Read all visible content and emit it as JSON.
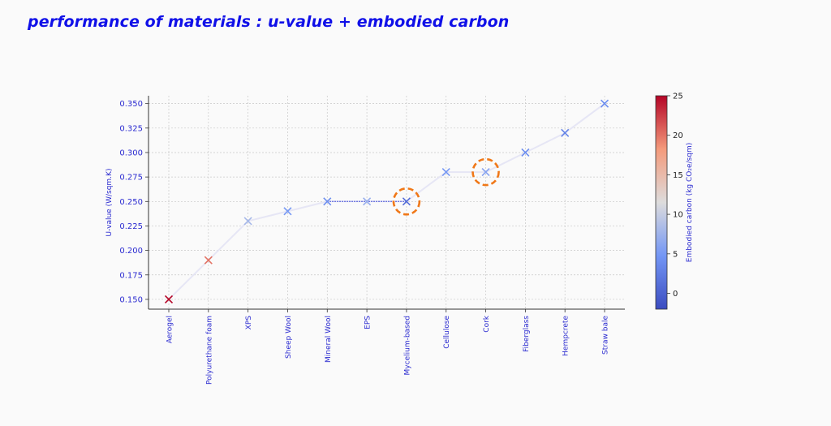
{
  "title": "performance of materials : u-value + embodied carbon",
  "chart_data": {
    "type": "scatter",
    "categories": [
      "Aerogel",
      "Polyurethane foam",
      "XPS",
      "Sheep Wool",
      "Mineral Wool",
      "EPS",
      "Mycelium-based",
      "Cellulose",
      "Cork",
      "Fiberglass",
      "Hempcrete",
      "Straw bale"
    ],
    "u_values": [
      0.15,
      0.19,
      0.23,
      0.24,
      0.25,
      0.25,
      0.25,
      0.28,
      0.28,
      0.3,
      0.32,
      0.35
    ],
    "embodied_carbon": [
      25,
      20,
      8,
      5,
      4,
      7,
      1,
      5,
      6,
      4,
      3,
      4
    ],
    "ylabel": "U-value (W/sqm.K)",
    "ylim": [
      0.14,
      0.358
    ],
    "yticks": [
      "0.150",
      "0.175",
      "0.200",
      "0.225",
      "0.250",
      "0.275",
      "0.300",
      "0.325",
      "0.350"
    ],
    "colorbar": {
      "label": "Embodied carbon (kg CO₂e/sqm)",
      "range": [
        -2,
        25
      ],
      "ticks": [
        "0",
        "5",
        "10",
        "15",
        "20",
        "25"
      ],
      "colormap": "coolwarm"
    },
    "highlighted": [
      "Mycelium-based",
      "Cork"
    ],
    "highlight_color": "#f07818",
    "line_color": "#e6e6f5",
    "dotted_segment": [
      "Mineral Wool",
      "Mycelium-based"
    ],
    "grid": true
  }
}
